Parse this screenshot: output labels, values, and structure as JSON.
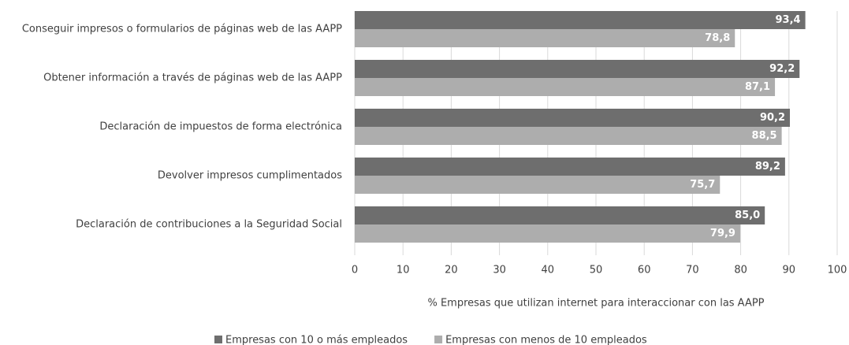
{
  "chart_data": {
    "type": "bar",
    "orientation": "horizontal",
    "categories": [
      "Conseguir impresos o formularios de páginas web de las AAPP",
      "Obtener información a través de páginas web de las AAPP",
      "Declaración de impuestos de forma electrónica",
      "Devolver impresos cumplimentados",
      "Declaración de contribuciones a la Seguridad Social"
    ],
    "series": [
      {
        "name": "Empresas con 10 o más empleados",
        "color": "#6e6e6e",
        "values": [
          93.4,
          92.2,
          90.2,
          89.2,
          85.0
        ],
        "value_labels": [
          "93,4",
          "92,2",
          "90,2",
          "89,2",
          "85,0"
        ]
      },
      {
        "name": "Empresas con menos de 10 empleados",
        "color": "#adadad",
        "values": [
          78.8,
          87.1,
          88.5,
          75.7,
          79.9
        ],
        "value_labels": [
          "78,8",
          "87,1",
          "88,5",
          "75,7",
          "79,9"
        ]
      }
    ],
    "xlabel": "% Empresas que utilizan internet para interaccionar con las AAPP",
    "xlim": [
      0,
      100
    ],
    "xticks": [
      0,
      10,
      20,
      30,
      40,
      50,
      60,
      70,
      80,
      90,
      100
    ],
    "grid": true,
    "legend": "bottom"
  }
}
